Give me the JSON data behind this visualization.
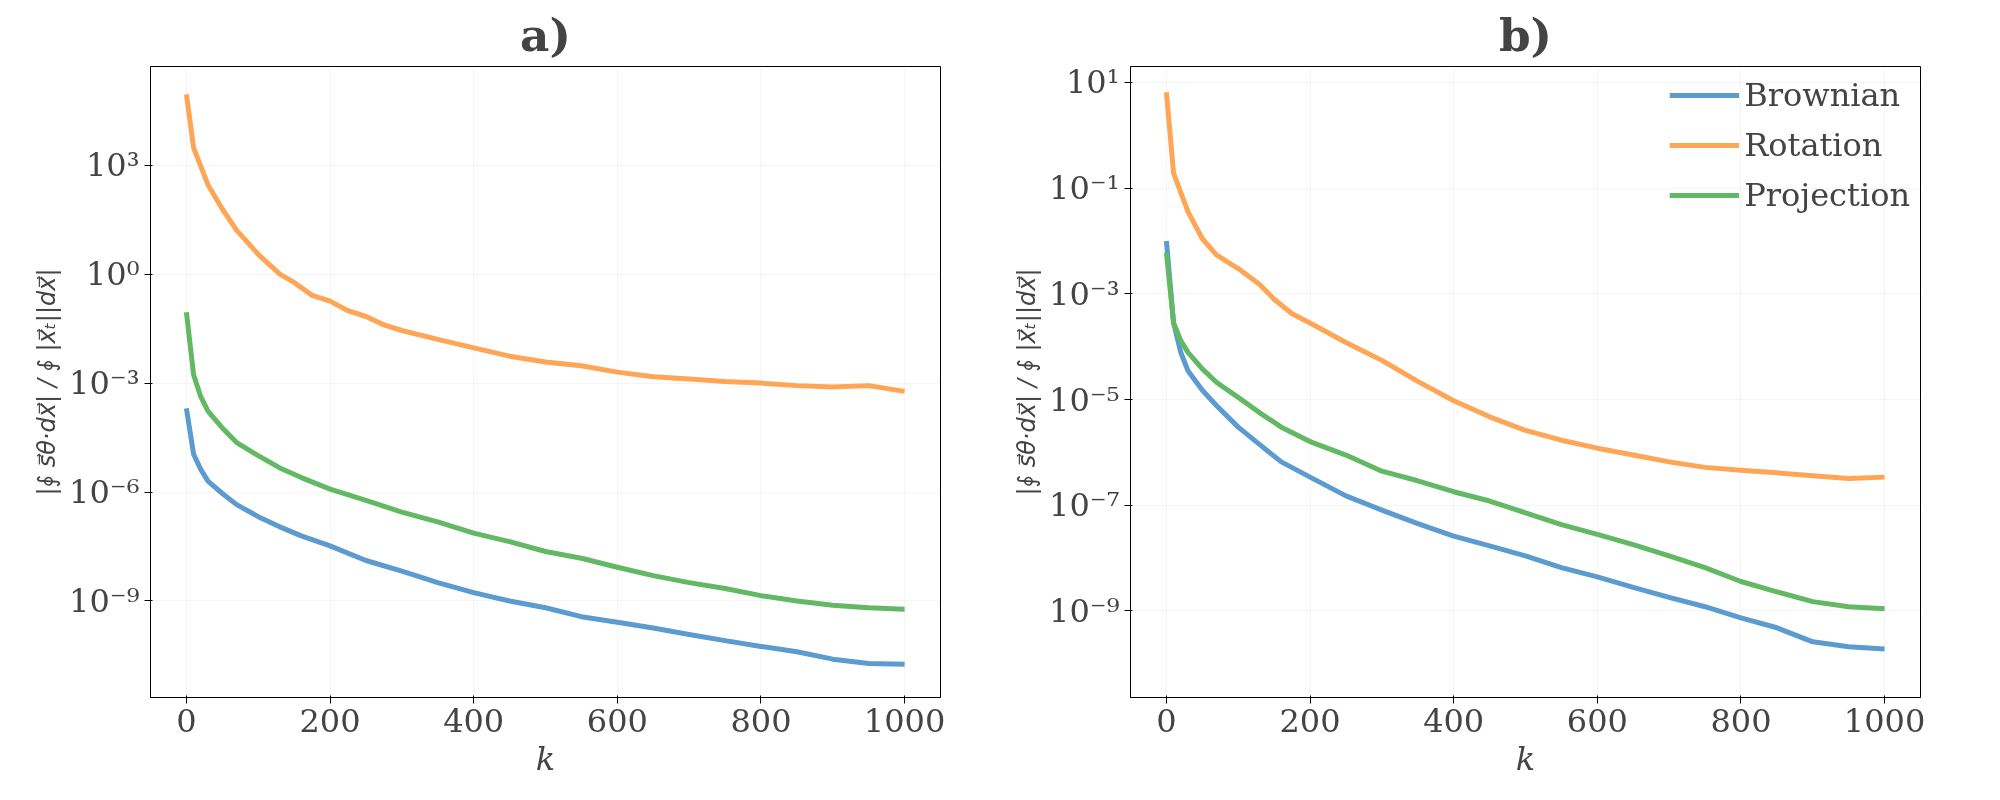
{
  "chart_data": [
    {
      "type": "line",
      "title": "a)",
      "xlabel": "k",
      "ylabel": "|∮ s⃗θ·dx⃗| / ∮ |x⃗ₜ||dx⃗|",
      "log": "y",
      "grid": true,
      "legend": false,
      "xlim": [
        -50,
        1050
      ],
      "ylim": [
        2.2e-12,
        520000.0
      ],
      "xticks": [
        0,
        200,
        400,
        600,
        800,
        1000
      ],
      "yticks": [
        {
          "value": 1e-09,
          "label": "10⁻⁹"
        },
        {
          "value": 1e-06,
          "label": "10⁻⁶"
        },
        {
          "value": 0.001,
          "label": "10⁻³"
        },
        {
          "value": 1,
          "label": "10⁰"
        },
        {
          "value": 1000.0,
          "label": "10³"
        }
      ],
      "series": [
        {
          "color": "#5b9bd0",
          "x": [
            0,
            10,
            20,
            30,
            50,
            70,
            100,
            130,
            160,
            200,
            250,
            300,
            350,
            400,
            450,
            500,
            550,
            600,
            650,
            700,
            750,
            800,
            850,
            900,
            950,
            1000
          ],
          "values": [
            0.0002,
            1.1e-05,
            4.2e-06,
            2e-06,
            9.1e-07,
            4.5e-07,
            2.1e-07,
            1.1e-07,
            6.2e-08,
            3.3e-08,
            1.3e-08,
            6.6e-09,
            3.2e-09,
            1.7e-09,
            1e-09,
            6.5e-10,
            3.7e-10,
            2.6e-10,
            1.8e-10,
            1.2e-10,
            8.1e-11,
            5.6e-11,
            4e-11,
            2.5e-11,
            1.9e-11,
            1.8e-11
          ]
        },
        {
          "color": "#ffa556",
          "x": [
            0,
            10,
            30,
            50,
            70,
            100,
            130,
            150,
            175,
            200,
            225,
            250,
            275,
            300,
            350,
            400,
            450,
            500,
            550,
            600,
            650,
            700,
            750,
            800,
            850,
            900,
            950,
            1000
          ],
          "values": [
            89000.0,
            3000.0,
            290.0,
            62,
            16,
            3.5,
            1.0,
            0.59,
            0.26,
            0.18,
            0.098,
            0.068,
            0.04,
            0.028,
            0.016,
            0.0093,
            0.0055,
            0.0038,
            0.003,
            0.002,
            0.0015,
            0.0013,
            0.0011,
            0.001,
            0.00085,
            0.00078,
            0.00085,
            0.00059
          ]
        },
        {
          "color": "#63b863",
          "x": [
            0,
            10,
            20,
            30,
            50,
            70,
            100,
            130,
            160,
            200,
            250,
            300,
            350,
            400,
            450,
            500,
            550,
            600,
            650,
            700,
            750,
            800,
            850,
            900,
            950,
            1000
          ],
          "values": [
            0.089,
            0.0017,
            0.00042,
            0.00017,
            5.8e-05,
            2.3e-05,
            1e-05,
            4.6e-06,
            2.5e-06,
            1.2e-06,
            5.9e-07,
            2.8e-07,
            1.5e-07,
            7.4e-08,
            4.3e-08,
            2.3e-08,
            1.5e-08,
            8.5e-09,
            5e-09,
            3.2e-09,
            2.2e-09,
            1.4e-09,
            1e-09,
            7.6e-10,
            6.5e-10,
            5.9e-10
          ]
        }
      ]
    },
    {
      "type": "line",
      "title": "b)",
      "xlabel": "k",
      "ylabel": "|∮ s⃗θ·dx⃗| / ∮ |x⃗ₜ||dx⃗|",
      "log": "y",
      "grid": true,
      "legend": "top right",
      "xlim": [
        -50,
        1050
      ],
      "ylim": [
        2.3e-11,
        20
      ],
      "xticks": [
        0,
        200,
        400,
        600,
        800,
        1000
      ],
      "yticks": [
        {
          "value": 1e-09,
          "label": "10⁻⁹"
        },
        {
          "value": 1e-07,
          "label": "10⁻⁷"
        },
        {
          "value": 1e-05,
          "label": "10⁻⁵"
        },
        {
          "value": 0.001,
          "label": "10⁻³"
        },
        {
          "value": 0.1,
          "label": "10⁻¹"
        },
        {
          "value": 10,
          "label": "10¹"
        }
      ],
      "series": [
        {
          "name": "Brownian",
          "color": "#5b9bd0",
          "x": [
            0,
            10,
            20,
            30,
            50,
            70,
            100,
            130,
            160,
            200,
            250,
            300,
            350,
            400,
            450,
            500,
            550,
            600,
            650,
            700,
            750,
            800,
            850,
            900,
            950,
            1000
          ],
          "values": [
            0.01,
            0.00028,
            7.8e-05,
            3.5e-05,
            1.5e-05,
            7.6e-06,
            3e-06,
            1.4e-06,
            6.6e-07,
            3.4e-07,
            1.5e-07,
            8.1e-08,
            4.5e-08,
            2.6e-08,
            1.7e-08,
            1.1e-08,
            6.6e-09,
            4.4e-09,
            2.8e-09,
            1.8e-09,
            1.2e-09,
            7.4e-10,
            4.8e-10,
            2.6e-10,
            2.1e-10,
            1.9e-10
          ]
        },
        {
          "name": "Rotation",
          "color": "#ffa556",
          "x": [
            0,
            10,
            30,
            50,
            70,
            100,
            130,
            150,
            175,
            200,
            250,
            300,
            350,
            400,
            450,
            500,
            550,
            600,
            650,
            700,
            750,
            800,
            850,
            900,
            950,
            1000
          ],
          "values": [
            6.5,
            0.19,
            0.036,
            0.011,
            0.0054,
            0.003,
            0.0015,
            0.00079,
            0.00042,
            0.00028,
            0.00012,
            5.5e-05,
            2.2e-05,
            9.5e-06,
            4.7e-06,
            2.6e-06,
            1.7e-06,
            1.2e-06,
            8.9e-07,
            6.6e-07,
            5.2e-07,
            4.6e-07,
            4.1e-07,
            3.6e-07,
            3.2e-07,
            3.4e-07
          ]
        },
        {
          "name": "Projection",
          "color": "#63b863",
          "x": [
            0,
            10,
            20,
            30,
            50,
            70,
            100,
            130,
            160,
            200,
            250,
            300,
            350,
            400,
            450,
            500,
            550,
            600,
            650,
            700,
            750,
            800,
            850,
            900,
            950,
            1000
          ],
          "values": [
            0.006,
            0.00028,
            0.00013,
            7.8e-05,
            3.8e-05,
            2.1e-05,
            1.1e-05,
            5.6e-06,
            3e-06,
            1.6e-06,
            8.9e-07,
            4.4e-07,
            2.9e-07,
            1.8e-07,
            1.2e-07,
            7.2e-08,
            4.3e-08,
            2.8e-08,
            1.8e-08,
            1.1e-08,
            6.6e-09,
            3.6e-09,
            2.3e-09,
            1.5e-09,
            1.2e-09,
            1.1e-09
          ]
        }
      ]
    }
  ]
}
